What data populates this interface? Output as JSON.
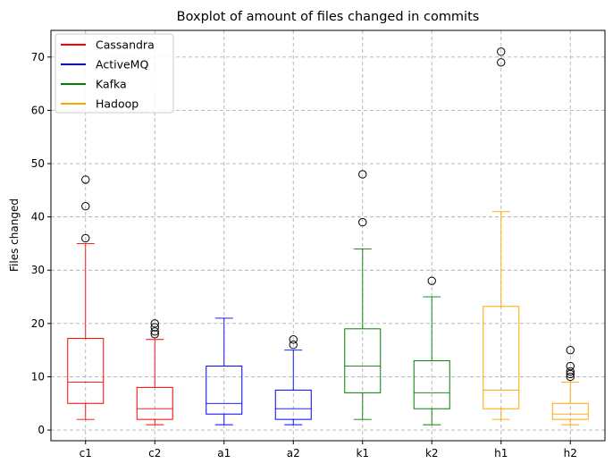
{
  "chart_data": {
    "type": "boxplot",
    "title": "Boxplot of amount of files changed in commits",
    "xlabel": "",
    "ylabel": "Files changed",
    "ylim": [
      -2,
      75
    ],
    "yticks": [
      0,
      10,
      20,
      30,
      40,
      50,
      60,
      70
    ],
    "grid": true,
    "legend_position": "top-left",
    "legend": [
      {
        "name": "Cassandra",
        "color": "#ff0000"
      },
      {
        "name": "ActiveMQ",
        "color": "#0000ff"
      },
      {
        "name": "Kafka",
        "color": "#008000"
      },
      {
        "name": "Hadoop",
        "color": "#ffa500"
      }
    ],
    "categories": [
      "c1",
      "c2",
      "a1",
      "a2",
      "k1",
      "k2",
      "h1",
      "h2"
    ],
    "boxes": [
      {
        "label": "c1",
        "color": "#ff0000",
        "whisker_low": 2,
        "q1": 5,
        "median": 9,
        "q3": 17.2,
        "whisker_high": 35,
        "outliers": [
          36,
          42,
          47
        ]
      },
      {
        "label": "c2",
        "color": "#ff0000",
        "whisker_low": 1,
        "q1": 2,
        "median": 4,
        "q3": 8,
        "whisker_high": 17,
        "outliers": [
          18,
          18.5,
          19.3,
          20
        ]
      },
      {
        "label": "a1",
        "color": "#0000ff",
        "whisker_low": 1,
        "q1": 3,
        "median": 5,
        "q3": 12,
        "whisker_high": 21,
        "outliers": []
      },
      {
        "label": "a2",
        "color": "#0000ff",
        "whisker_low": 1,
        "q1": 2,
        "median": 4,
        "q3": 7.5,
        "whisker_high": 15,
        "outliers": [
          16,
          17
        ]
      },
      {
        "label": "k1",
        "color": "#008000",
        "whisker_low": 2,
        "q1": 7,
        "median": 12,
        "q3": 19,
        "whisker_high": 34,
        "outliers": [
          39,
          48
        ]
      },
      {
        "label": "k2",
        "color": "#008000",
        "whisker_low": 1,
        "q1": 4,
        "median": 7,
        "q3": 13,
        "whisker_high": 25,
        "outliers": [
          28
        ]
      },
      {
        "label": "h1",
        "color": "#ffa500",
        "whisker_low": 2,
        "q1": 4,
        "median": 7.5,
        "q3": 23.2,
        "whisker_high": 41,
        "outliers": [
          69,
          71
        ]
      },
      {
        "label": "h2",
        "color": "#ffa500",
        "whisker_low": 1,
        "q1": 2,
        "median": 3,
        "q3": 5,
        "whisker_high": 9,
        "outliers": [
          10,
          10.5,
          11,
          12,
          15
        ]
      }
    ]
  }
}
